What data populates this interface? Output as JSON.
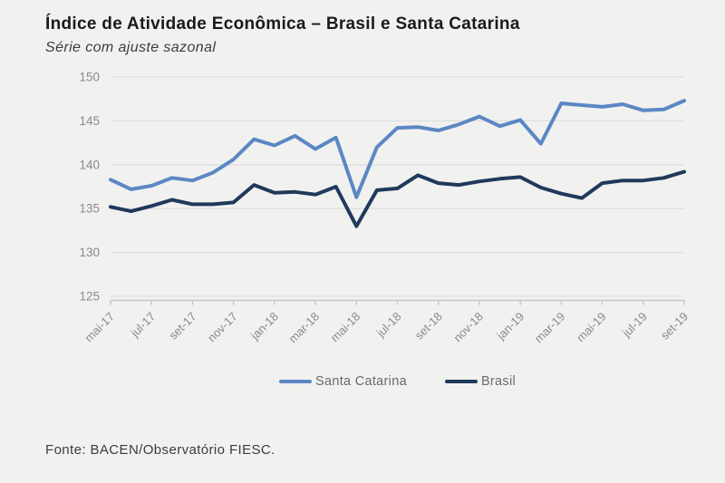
{
  "title": "Índice de Atividade Econômica – Brasil e Santa Catarina",
  "subtitle": "Série com ajuste sazonal",
  "footer": "Fonte: BACEN/Observatório FIESC.",
  "colors": {
    "santa_catarina": "#5B87C4",
    "brasil": "#20395C",
    "background": "#F1F1F0",
    "gridline": "#E0E0DF",
    "axis_line": "#C6C6C5",
    "tick_label": "#8A8A8A",
    "legend_text": "#6B6B6B"
  },
  "legend": [
    {
      "label": "Santa Catarina",
      "color": "#5B87C4"
    },
    {
      "label": "Brasil",
      "color": "#20395C"
    }
  ],
  "chart_data": {
    "type": "line",
    "x": [
      "mai-17",
      "jun-17",
      "jul-17",
      "ago-17",
      "set-17",
      "out-17",
      "nov-17",
      "dez-17",
      "jan-18",
      "fev-18",
      "mar-18",
      "abr-18",
      "mai-18",
      "jun-18",
      "jul-18",
      "ago-18",
      "set-18",
      "out-18",
      "nov-18",
      "dez-18",
      "jan-19",
      "fev-19",
      "mar-19",
      "abr-19",
      "mai-19",
      "jun-19",
      "jul-19",
      "ago-19",
      "set-19"
    ],
    "x_tick_labels": [
      "mai-17",
      "jul-17",
      "set-17",
      "nov-17",
      "jan-18",
      "mar-18",
      "mai-18",
      "jul-18",
      "set-18",
      "nov-18",
      "jan-19",
      "mar-19",
      "mai-19",
      "jul-19",
      "set-19"
    ],
    "x_label_interval": 2,
    "ylim": [
      125,
      150
    ],
    "y_ticks": [
      150,
      145,
      140,
      135,
      130,
      125
    ],
    "grid": true,
    "legend_position": "bottom",
    "series": [
      {
        "name": "Santa Catarina",
        "color": "#5B87C4",
        "values": [
          138.3,
          137.2,
          137.6,
          138.5,
          138.2,
          139.1,
          140.6,
          142.9,
          142.2,
          143.3,
          141.8,
          143.1,
          136.3,
          142.0,
          144.2,
          144.3,
          143.9,
          144.6,
          145.5,
          144.4,
          145.1,
          142.4,
          147.0,
          146.8,
          146.6,
          146.9,
          146.2,
          146.3,
          147.3
        ]
      },
      {
        "name": "Brasil",
        "color": "#20395C",
        "values": [
          135.2,
          134.7,
          135.3,
          136.0,
          135.5,
          135.5,
          135.7,
          137.7,
          136.8,
          136.9,
          136.6,
          137.5,
          133.0,
          137.1,
          137.3,
          138.8,
          137.9,
          137.7,
          138.1,
          138.4,
          138.6,
          137.4,
          136.7,
          136.2,
          137.9,
          138.2,
          138.2,
          138.5,
          139.2
        ]
      }
    ]
  }
}
